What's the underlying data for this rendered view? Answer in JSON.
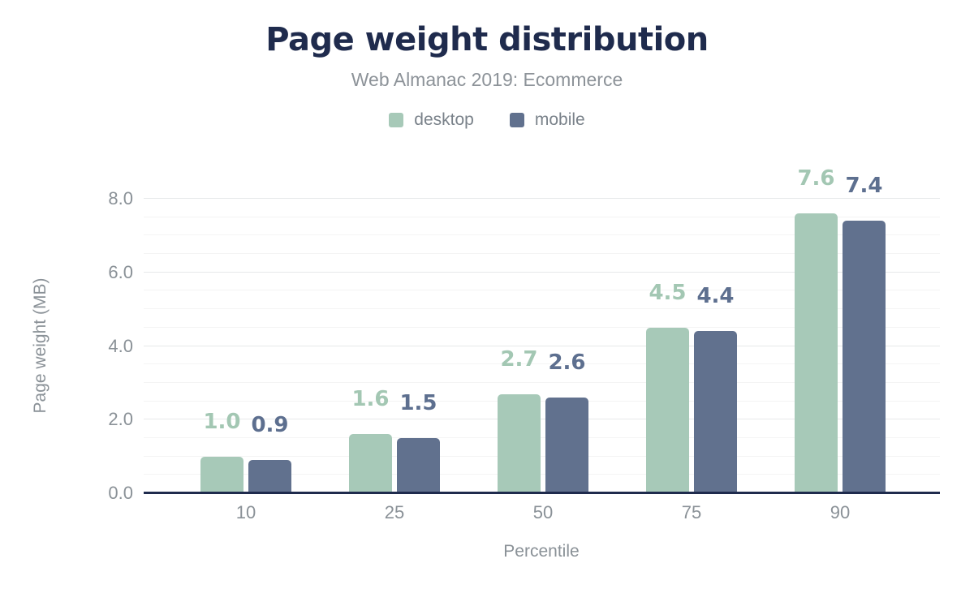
{
  "chart_data": {
    "type": "bar",
    "title": "Page weight distribution",
    "subtitle": "Web Almanac 2019: Ecommerce",
    "categories": [
      "10",
      "25",
      "50",
      "75",
      "90"
    ],
    "series": [
      {
        "name": "desktop",
        "values": [
          1.0,
          1.6,
          2.7,
          4.5,
          7.6
        ],
        "value_labels": [
          "1.0",
          "1.6",
          "2.7",
          "4.5",
          "7.6"
        ],
        "color": "#a7c9b8",
        "label_color": "#a3c7b3"
      },
      {
        "name": "mobile",
        "values": [
          0.9,
          1.5,
          2.6,
          4.4,
          7.4
        ],
        "value_labels": [
          "0.9",
          "1.5",
          "2.6",
          "4.4",
          "7.4"
        ],
        "color": "#61718e",
        "label_color": "#5d6f8f"
      }
    ],
    "xlabel": "Percentile",
    "ylabel": "Page weight (MB)",
    "ylim": [
      0,
      8
    ],
    "yticks": [
      0,
      2,
      4,
      6,
      8
    ],
    "ytick_labels": [
      "0.0",
      "2.0",
      "4.0",
      "6.0",
      "8.0"
    ],
    "grid": {
      "minor_step": 0.5,
      "major_step": 2
    },
    "legend_position": "top",
    "value_labels_shown": true
  },
  "colors": {
    "background": "#ffffff",
    "title_text": "#1f2b4d",
    "subtitle_text": "#8d9399",
    "legend_text": "#7a828a",
    "axis_text": "#8a9197",
    "baseline": "#1f2b4d",
    "grid_major": "#e7e9ea",
    "grid_minor": "#f4f4f4"
  }
}
